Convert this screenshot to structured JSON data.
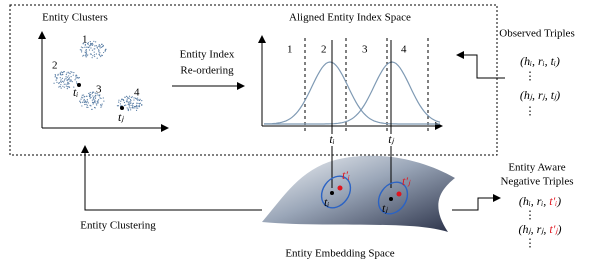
{
  "left_plot": {
    "title": "Entity Clusters",
    "clusters": [
      "1",
      "2",
      "3",
      "4"
    ],
    "points": [
      "tᵢ",
      "tⱼ"
    ]
  },
  "reorder": {
    "line1": "Entity Index",
    "line2": "Re-ordering"
  },
  "index_space": {
    "title": "Aligned Entity Index Space",
    "regions": [
      "1",
      "2",
      "3",
      "4"
    ],
    "ticks": [
      "tᵢ",
      "tⱼ"
    ]
  },
  "observed": {
    "title": "Observed Triples",
    "rows": [
      "(hᵢ, rᵢ, tᵢ)",
      "⋮",
      "(hⱼ, rⱼ, tⱼ)",
      "⋮"
    ]
  },
  "negative": {
    "title1": "Entity Aware",
    "title2": "Negative Triples",
    "rows": [
      {
        "prefix": "(hᵢ, rᵢ, ",
        "neg": "t′ᵢ",
        "suffix": ")"
      },
      {
        "prefix": "⋮"
      },
      {
        "prefix": "(hⱼ, rⱼ, ",
        "neg": "t′ⱼ",
        "suffix": ")"
      },
      {
        "prefix": "⋮"
      }
    ]
  },
  "clustering": {
    "label": "Entity Clustering"
  },
  "embedding": {
    "title": "Entity Embedding Space",
    "pos": [
      "tᵢ",
      "tⱼ"
    ],
    "neg": [
      "t′ᵢ",
      "t′ⱼ"
    ]
  }
}
